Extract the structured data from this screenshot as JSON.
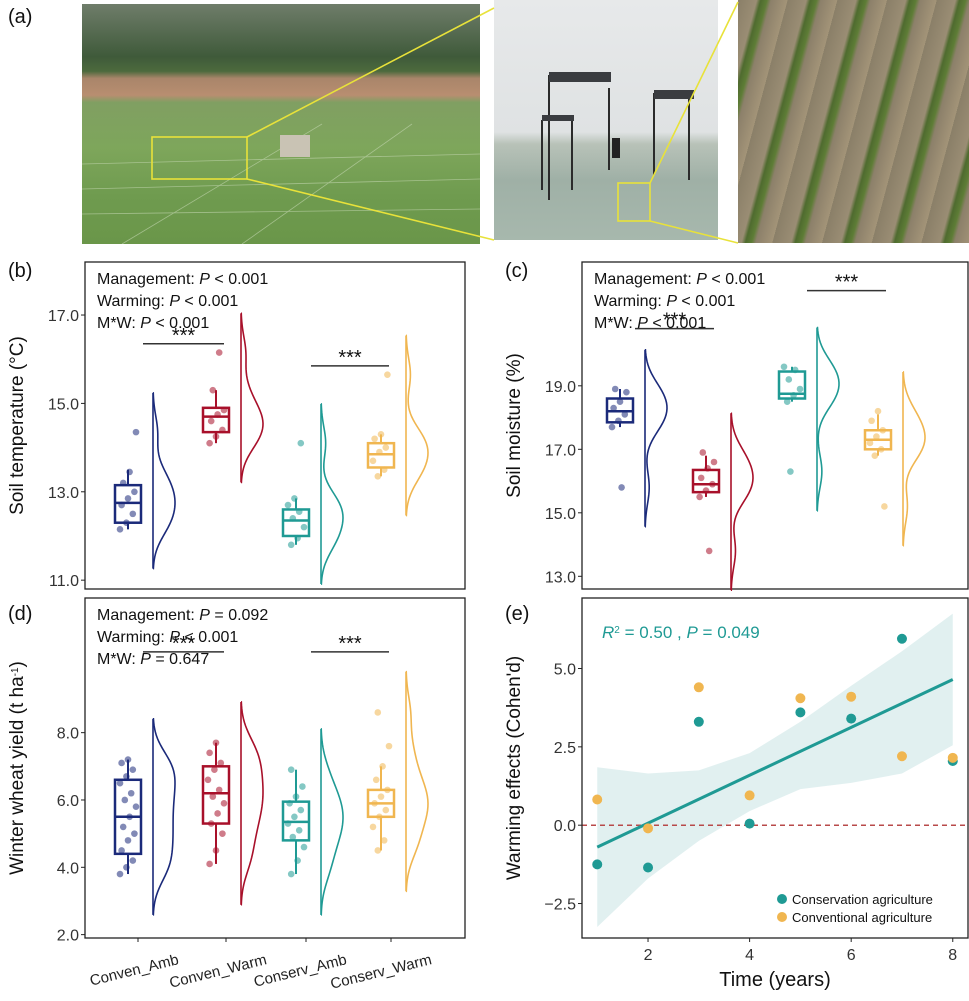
{
  "panels": {
    "a": "(a)",
    "b": "(b)",
    "c": "(c)",
    "d": "(d)",
    "e": "(e)"
  },
  "colors": {
    "conven_amb": "#1b2a7a",
    "conven_warm": "#a8102a",
    "conserv_amb": "#1f9a94",
    "conserv_warm": "#f0b650",
    "significance": "#333333"
  },
  "chart_data": [
    {
      "id": "b",
      "type": "box",
      "ylabel": "Soil temperature (°C)",
      "ylim": [
        10.8,
        18.2
      ],
      "yticks": [
        11.0,
        13.0,
        15.0,
        17.0
      ],
      "stats": [
        {
          "label": "Management: ",
          "p": "P",
          "rest": " < 0.001"
        },
        {
          "label": "Warming: ",
          "p": "P",
          "rest": " < 0.001"
        },
        {
          "label": "M*W: ",
          "p": "P",
          "rest": " < 0.001"
        }
      ],
      "groups": [
        {
          "name": "Conven_Amb",
          "q1": 12.3,
          "median": 12.75,
          "q3": 13.15,
          "wlow": 12.15,
          "whigh": 13.5,
          "points": [
            12.15,
            12.3,
            12.5,
            12.7,
            12.85,
            13.0,
            13.2,
            13.45,
            14.35
          ]
        },
        {
          "name": "Conven_Warm",
          "q1": 14.35,
          "median": 14.7,
          "q3": 14.9,
          "wlow": 14.1,
          "whigh": 15.3,
          "points": [
            14.1,
            14.25,
            14.4,
            14.6,
            14.75,
            14.85,
            15.3,
            16.15
          ]
        },
        {
          "name": "Conserv_Amb",
          "q1": 12.0,
          "median": 12.35,
          "q3": 12.6,
          "wlow": 11.8,
          "whigh": 12.85,
          "points": [
            11.8,
            11.95,
            12.2,
            12.4,
            12.55,
            12.7,
            12.85,
            14.1
          ]
        },
        {
          "name": "Conserv_Warm",
          "q1": 13.55,
          "median": 13.85,
          "q3": 14.1,
          "wlow": 13.35,
          "whigh": 14.3,
          "points": [
            13.35,
            13.5,
            13.7,
            13.9,
            14.0,
            14.2,
            14.3,
            15.65
          ]
        }
      ],
      "sig": [
        {
          "between": [
            0,
            1
          ],
          "y": 16.35,
          "label": "***"
        },
        {
          "between": [
            2,
            3
          ],
          "y": 15.85,
          "label": "***"
        }
      ]
    },
    {
      "id": "c",
      "type": "box",
      "ylabel": "Soil moisture (%)",
      "ylim": [
        12.6,
        22.9
      ],
      "yticks": [
        13.0,
        15.0,
        17.0,
        19.0
      ],
      "stats": [
        {
          "label": "Management: ",
          "p": "P",
          "rest": " < 0.001"
        },
        {
          "label": "Warming: ",
          "p": "P",
          "rest": " < 0.001"
        },
        {
          "label": "M*W: ",
          "p": "P",
          "rest": " < 0.001"
        }
      ],
      "groups": [
        {
          "name": "Conven_Amb",
          "q1": 17.85,
          "median": 18.2,
          "q3": 18.6,
          "wlow": 17.7,
          "whigh": 18.9,
          "points": [
            17.7,
            17.9,
            18.1,
            18.3,
            18.5,
            18.8,
            18.9,
            15.8
          ]
        },
        {
          "name": "Conven_Warm",
          "q1": 15.65,
          "median": 15.9,
          "q3": 16.35,
          "wlow": 15.5,
          "whigh": 16.8,
          "points": [
            15.5,
            15.7,
            15.9,
            16.1,
            16.4,
            16.6,
            16.9,
            13.8
          ]
        },
        {
          "name": "Conserv_Amb",
          "q1": 18.6,
          "median": 18.75,
          "q3": 19.45,
          "wlow": 18.5,
          "whigh": 19.6,
          "points": [
            18.5,
            18.7,
            18.9,
            19.2,
            19.5,
            19.6,
            16.3
          ]
        },
        {
          "name": "Conserv_Warm",
          "q1": 17.0,
          "median": 17.3,
          "q3": 17.6,
          "wlow": 16.8,
          "whigh": 18.1,
          "points": [
            16.8,
            17.0,
            17.2,
            17.4,
            17.6,
            17.9,
            18.2,
            15.2
          ]
        }
      ],
      "sig": [
        {
          "between": [
            0,
            1
          ],
          "y": 20.8,
          "label": "***"
        },
        {
          "between": [
            2,
            3
          ],
          "y": 22.0,
          "label": "***"
        }
      ]
    },
    {
      "id": "d",
      "type": "box",
      "ylabel": "Winter wheat yield (t ha",
      "ylabel_sup": "-1",
      "ylabel_end": ")",
      "ylim": [
        1.9,
        12.0
      ],
      "yticks": [
        2.0,
        4.0,
        6.0,
        8.0
      ],
      "categories": [
        "Conven_Amb",
        "Conven_Warm",
        "Conserv_Amb",
        "Conserv_Warm"
      ],
      "stats": [
        {
          "label": "Management: ",
          "p": "P",
          "rest": " = 0.092"
        },
        {
          "label": "Warming: ",
          "p": "P",
          "rest": " < 0.001"
        },
        {
          "label": "M*W: ",
          "p": "P",
          "rest": " = 0.647"
        }
      ],
      "groups": [
        {
          "name": "Conven_Amb",
          "q1": 4.4,
          "median": 5.5,
          "q3": 6.6,
          "wlow": 3.8,
          "whigh": 7.2,
          "points": [
            3.8,
            4.0,
            4.2,
            4.5,
            4.8,
            5.0,
            5.2,
            5.5,
            5.8,
            6.0,
            6.2,
            6.5,
            6.7,
            6.9,
            7.1,
            7.2
          ]
        },
        {
          "name": "Conven_Warm",
          "q1": 5.3,
          "median": 6.2,
          "q3": 7.0,
          "wlow": 4.1,
          "whigh": 7.7,
          "points": [
            4.1,
            4.5,
            5.0,
            5.3,
            5.6,
            5.9,
            6.1,
            6.3,
            6.6,
            6.9,
            7.1,
            7.4,
            7.7
          ]
        },
        {
          "name": "Conserv_Amb",
          "q1": 4.8,
          "median": 5.35,
          "q3": 5.95,
          "wlow": 3.8,
          "whigh": 6.9,
          "points": [
            3.8,
            4.2,
            4.6,
            4.9,
            5.1,
            5.3,
            5.5,
            5.7,
            5.9,
            6.1,
            6.4,
            6.9
          ]
        },
        {
          "name": "Conserv_Warm",
          "q1": 5.5,
          "median": 5.9,
          "q3": 6.3,
          "wlow": 4.5,
          "whigh": 7.0,
          "points": [
            4.5,
            4.8,
            5.2,
            5.5,
            5.7,
            5.9,
            6.1,
            6.3,
            6.6,
            7.0,
            7.6,
            8.6
          ]
        }
      ],
      "sig": [
        {
          "between": [
            0,
            1
          ],
          "y": 10.4,
          "label": "***"
        },
        {
          "between": [
            2,
            3
          ],
          "y": 10.4,
          "label": "***"
        }
      ]
    },
    {
      "id": "e",
      "type": "scatter",
      "xlabel": "Time (years)",
      "ylabel": "Warming effects (Cohen'd)",
      "xlim": [
        0.7,
        8.3
      ],
      "ylim": [
        -3.6,
        7.25
      ],
      "xticks": [
        2,
        4,
        6,
        8
      ],
      "yticks": [
        -2.5,
        0.0,
        2.5,
        5.0
      ],
      "ytick_labels": [
        "−2.5",
        "0.0",
        "2.5",
        "5.0"
      ],
      "annotation": {
        "r": "R",
        "sup": "2",
        "rest": " = 0.50 , ",
        "p": "P",
        "rest2": " = 0.049"
      },
      "series": [
        {
          "name": "Conservation agriculture",
          "x": [
            1,
            2,
            3,
            4,
            5,
            6,
            7,
            8
          ],
          "y": [
            -1.25,
            -1.35,
            3.3,
            0.05,
            3.6,
            3.4,
            5.95,
            2.05
          ]
        },
        {
          "name": "Conventional agriculture",
          "x": [
            1,
            2,
            3,
            4,
            5,
            6,
            7,
            8
          ],
          "y": [
            0.82,
            -0.1,
            4.4,
            0.95,
            4.05,
            4.1,
            2.2,
            2.15
          ]
        }
      ],
      "fit": {
        "x": [
          1,
          8
        ],
        "y": [
          -0.7,
          4.65
        ]
      },
      "ci_upper": [
        1.85,
        1.65,
        1.75,
        2.3,
        3.3,
        4.45,
        5.55,
        6.75
      ],
      "ci_lower": [
        -3.25,
        -1.7,
        -0.5,
        0.45,
        1.15,
        1.35,
        1.65,
        2.55
      ],
      "reference_y": 0.0
    }
  ]
}
